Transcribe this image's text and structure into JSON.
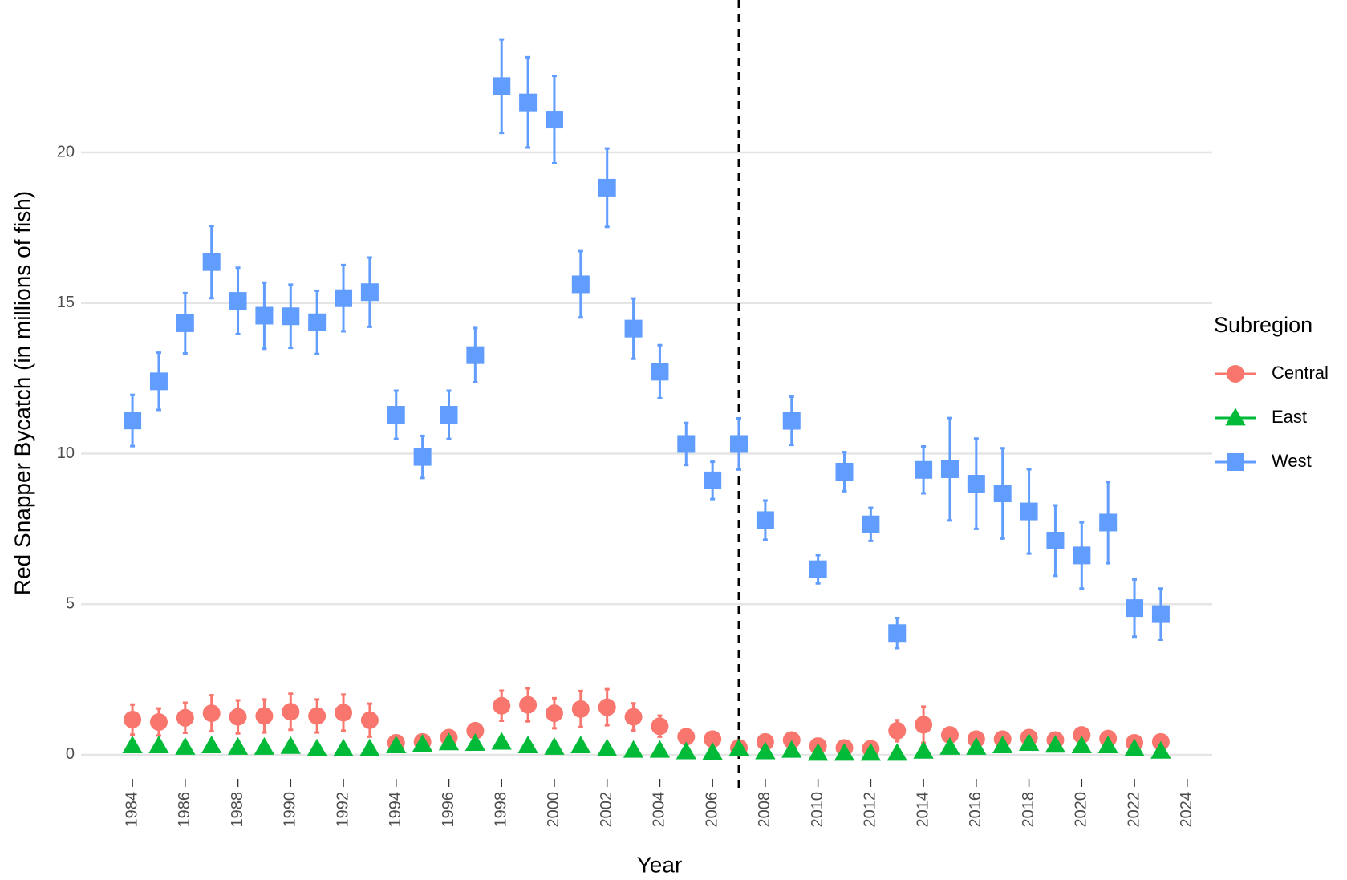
{
  "chart_data": {
    "type": "scatter",
    "x_label": "Year",
    "y_label": "Red Snapper Bycatch (in millions of fish)",
    "legend_title": "Subregion",
    "legend_position": "right",
    "grid": true,
    "vline": 2007,
    "x": [
      1984,
      1985,
      1986,
      1987,
      1988,
      1989,
      1990,
      1991,
      1992,
      1993,
      1994,
      1995,
      1996,
      1997,
      1998,
      1999,
      2000,
      2001,
      2002,
      2003,
      2004,
      2005,
      2006,
      2007,
      2008,
      2009,
      2010,
      2011,
      2012,
      2013,
      2014,
      2015,
      2016,
      2017,
      2018,
      2019,
      2020,
      2021,
      2022,
      2023
    ],
    "xlim": [
      1982.05,
      2024.95
    ],
    "xticks": [
      1984,
      1986,
      1988,
      1990,
      1992,
      1994,
      1996,
      1998,
      2000,
      2002,
      2004,
      2006,
      2008,
      2010,
      2012,
      2014,
      2016,
      2018,
      2020,
      2022,
      2024
    ],
    "ylim": [
      -0.8,
      24.9
    ],
    "yticks": [
      0,
      5,
      10,
      15,
      20
    ],
    "series": [
      {
        "name": "Central",
        "color": "#F8766D",
        "marker": "circle",
        "values": [
          1.17,
          1.09,
          1.23,
          1.38,
          1.26,
          1.29,
          1.43,
          1.29,
          1.4,
          1.15,
          0.4,
          0.43,
          0.57,
          0.8,
          1.63,
          1.66,
          1.38,
          1.52,
          1.58,
          1.26,
          0.95,
          0.6,
          0.52,
          0.23,
          0.43,
          0.49,
          0.29,
          0.23,
          0.2,
          0.8,
          1.0,
          0.66,
          0.52,
          0.52,
          0.57,
          0.49,
          0.66,
          0.54,
          0.4,
          0.43
        ],
        "error": [
          0.5,
          0.45,
          0.5,
          0.6,
          0.55,
          0.55,
          0.6,
          0.55,
          0.6,
          0.55,
          0.05,
          0.05,
          0.05,
          0.1,
          0.5,
          0.55,
          0.5,
          0.6,
          0.6,
          0.45,
          0.35,
          0.05,
          0.05,
          0.05,
          0.05,
          0.05,
          0.05,
          0.05,
          0.05,
          0.35,
          0.6,
          0.05,
          0.05,
          0.05,
          0.05,
          0.05,
          0.05,
          0.05,
          0.05,
          0.05
        ]
      },
      {
        "name": "East",
        "color": "#00BA38",
        "marker": "triangle",
        "values": [
          0.3,
          0.3,
          0.25,
          0.3,
          0.25,
          0.25,
          0.28,
          0.2,
          0.2,
          0.2,
          0.3,
          0.35,
          0.4,
          0.38,
          0.42,
          0.3,
          0.25,
          0.3,
          0.2,
          0.15,
          0.15,
          0.1,
          0.08,
          0.2,
          0.1,
          0.15,
          0.05,
          0.05,
          0.05,
          0.05,
          0.12,
          0.25,
          0.25,
          0.3,
          0.38,
          0.32,
          0.3,
          0.3,
          0.2,
          0.12
        ]
      },
      {
        "name": "West",
        "color": "#619CFF",
        "marker": "square",
        "values": [
          11.1,
          12.4,
          14.33,
          16.36,
          15.07,
          14.58,
          14.56,
          14.36,
          15.16,
          15.36,
          11.29,
          9.89,
          11.29,
          13.27,
          22.2,
          21.66,
          21.09,
          15.62,
          18.83,
          14.15,
          12.72,
          10.32,
          9.11,
          10.32,
          7.79,
          11.09,
          6.16,
          9.4,
          7.65,
          4.04,
          9.46,
          9.48,
          9.0,
          8.68,
          8.08,
          7.11,
          6.62,
          7.71,
          4.87,
          4.67
        ],
        "error": [
          0.85,
          0.95,
          1.0,
          1.2,
          1.1,
          1.1,
          1.05,
          1.05,
          1.1,
          1.15,
          0.8,
          0.7,
          0.8,
          0.9,
          1.55,
          1.5,
          1.45,
          1.1,
          1.3,
          1.0,
          0.88,
          0.7,
          0.62,
          0.85,
          0.65,
          0.8,
          0.47,
          0.65,
          0.55,
          0.5,
          0.78,
          1.7,
          1.5,
          1.5,
          1.4,
          1.17,
          1.1,
          1.35,
          0.95,
          0.85
        ]
      }
    ]
  }
}
